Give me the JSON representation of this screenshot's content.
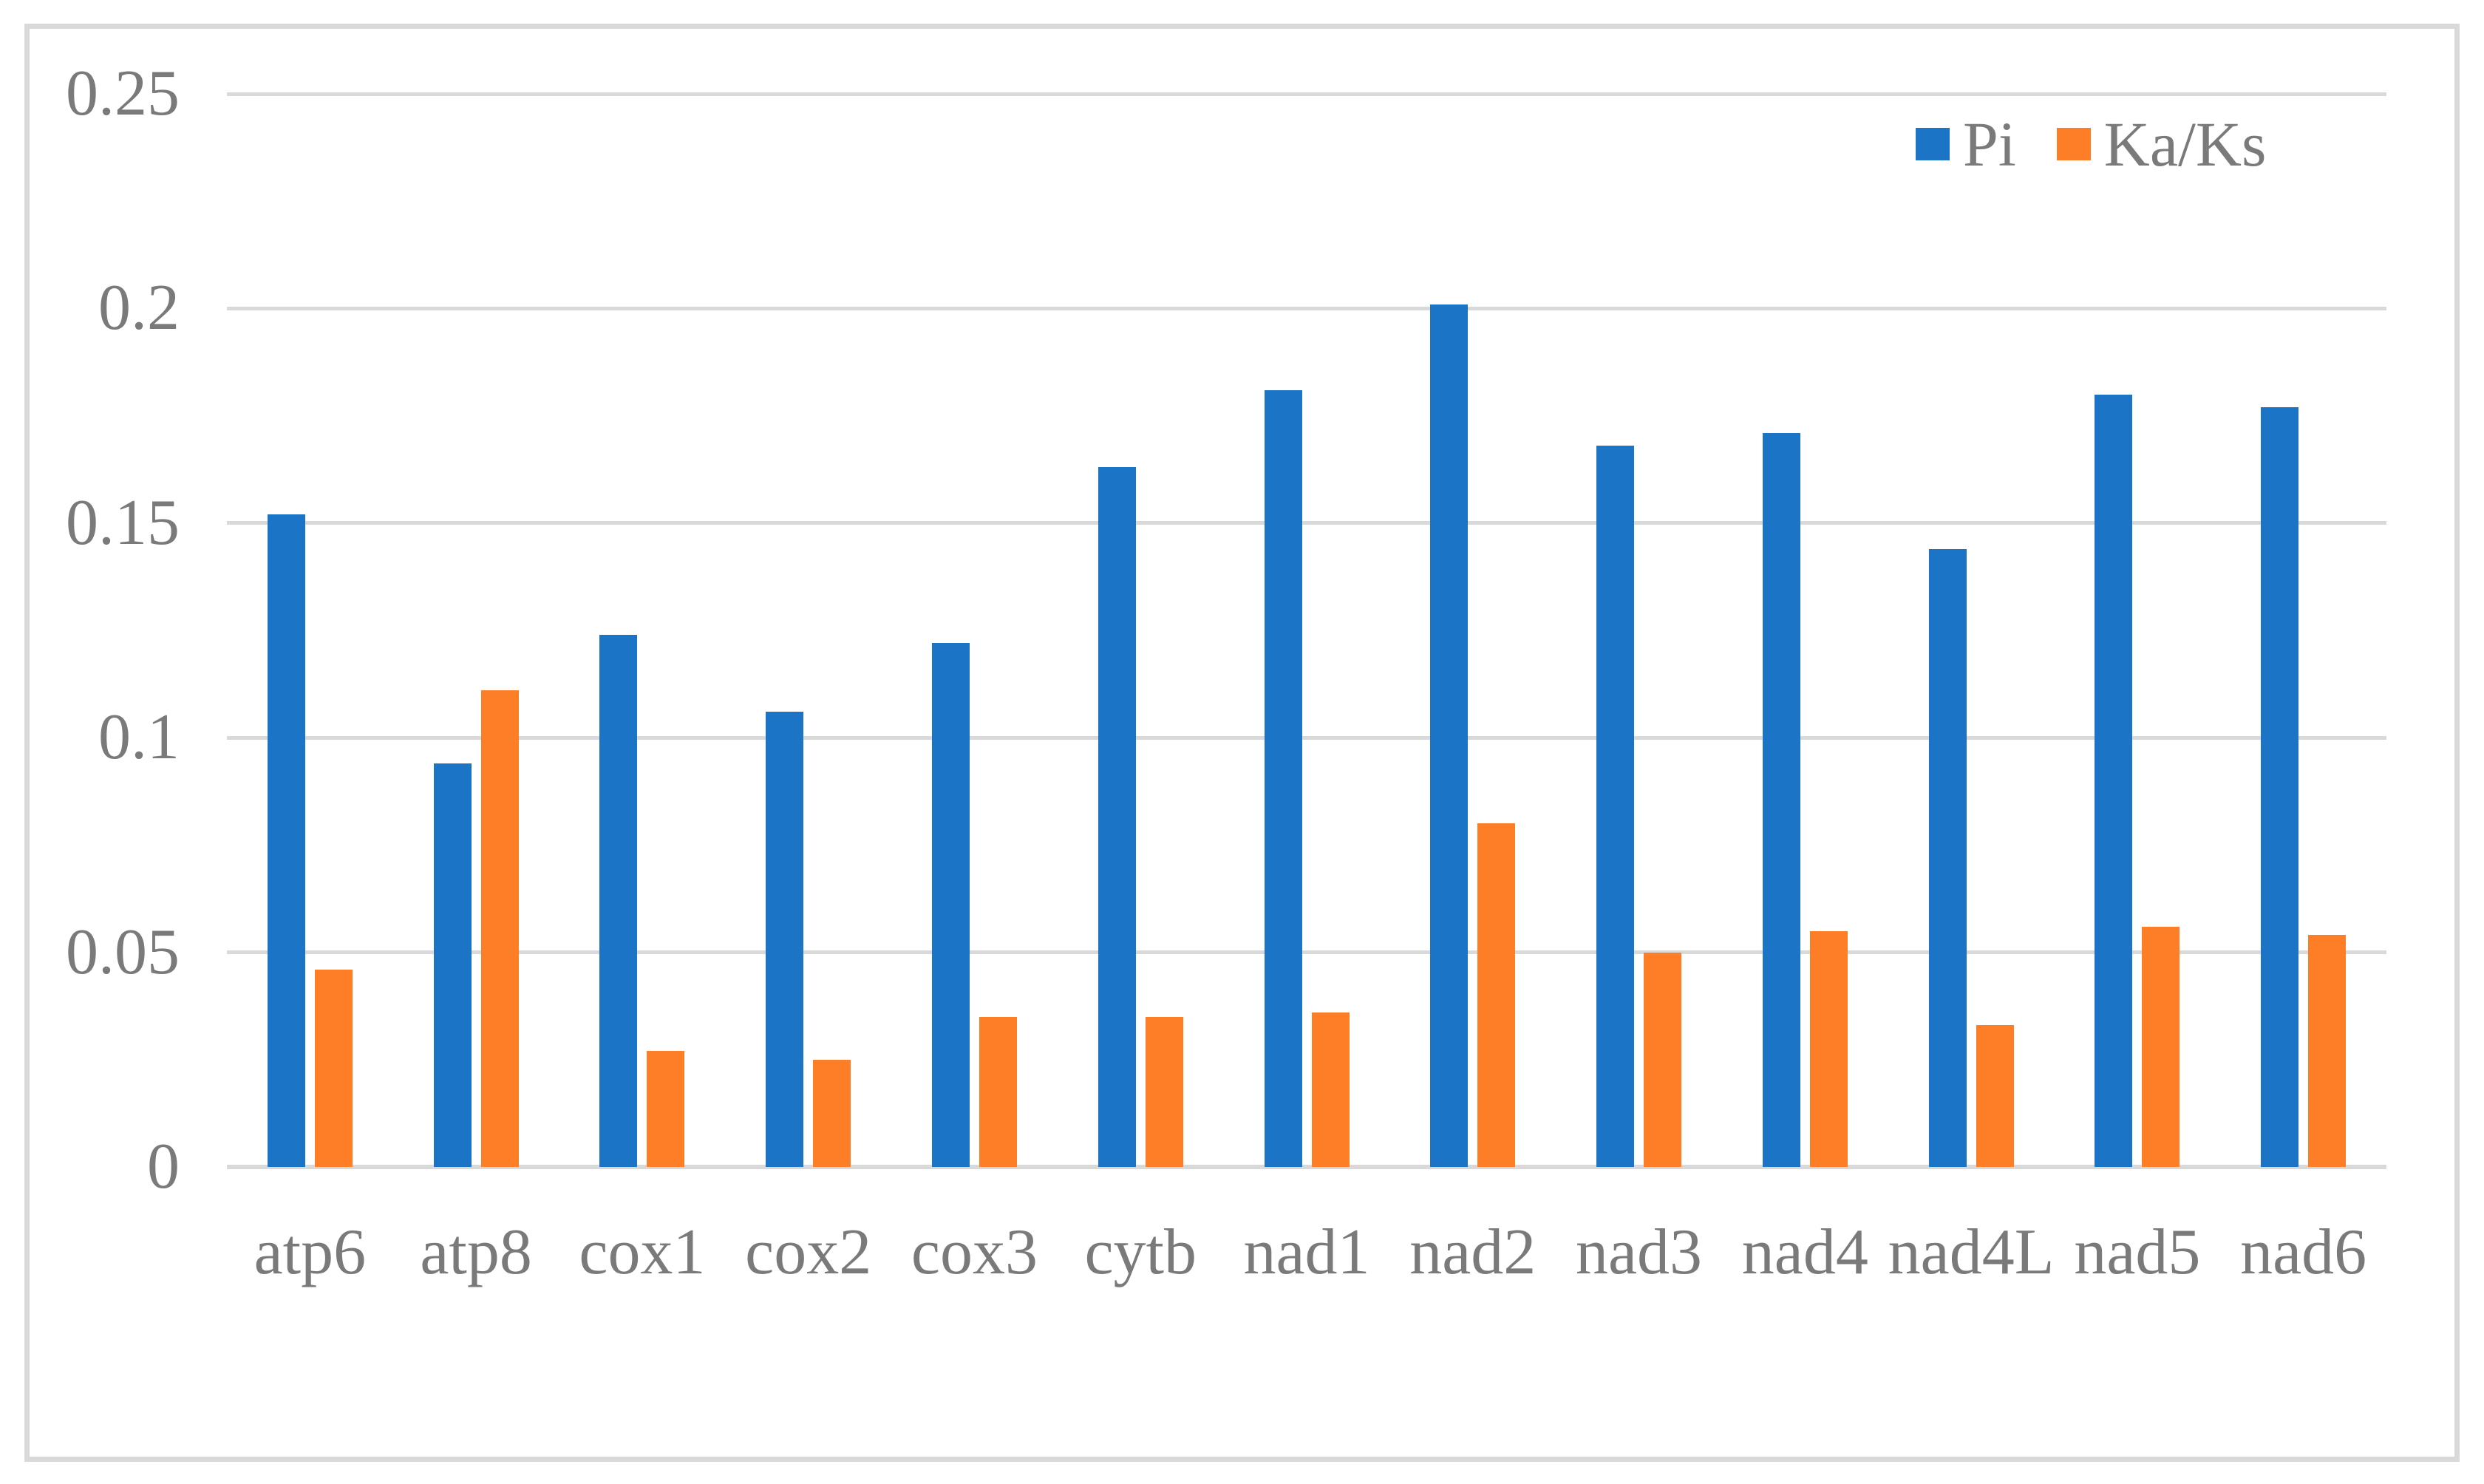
{
  "figure": {
    "background": "#FFFFFF",
    "border_color": "#D9D9D9"
  },
  "chart_data": {
    "type": "bar",
    "title": "",
    "xlabel": "",
    "ylabel": "",
    "categories": [
      "atp6",
      "atp8",
      "cox1",
      "cox2",
      "cox3",
      "cytb",
      "nad1",
      "nad2",
      "nad3",
      "nad4",
      "nad4L",
      "nad5",
      "nad6"
    ],
    "series": [
      {
        "name": "Pi",
        "color": "#1B74C5",
        "values": [
          0.152,
          0.094,
          0.124,
          0.106,
          0.122,
          0.163,
          0.181,
          0.201,
          0.168,
          0.171,
          0.144,
          0.18,
          0.177
        ]
      },
      {
        "name": "Ka/Ks",
        "color": "#FD7E27",
        "values": [
          0.046,
          0.111,
          0.027,
          0.025,
          0.035,
          0.035,
          0.036,
          0.08,
          0.05,
          0.055,
          0.033,
          0.056,
          0.054
        ]
      }
    ],
    "ylim": [
      0,
      0.25
    ],
    "yticks": [
      0,
      0.05,
      0.1,
      0.15,
      0.2,
      0.25
    ],
    "ytick_labels": [
      "0",
      "0.05",
      "0.1",
      "0.15",
      "0.2",
      "0.25"
    ],
    "grid": "horizontal",
    "gridline_color": "#D9D9D9",
    "axis_text_color": "#7A7A7A",
    "legend_position": "top-right"
  }
}
